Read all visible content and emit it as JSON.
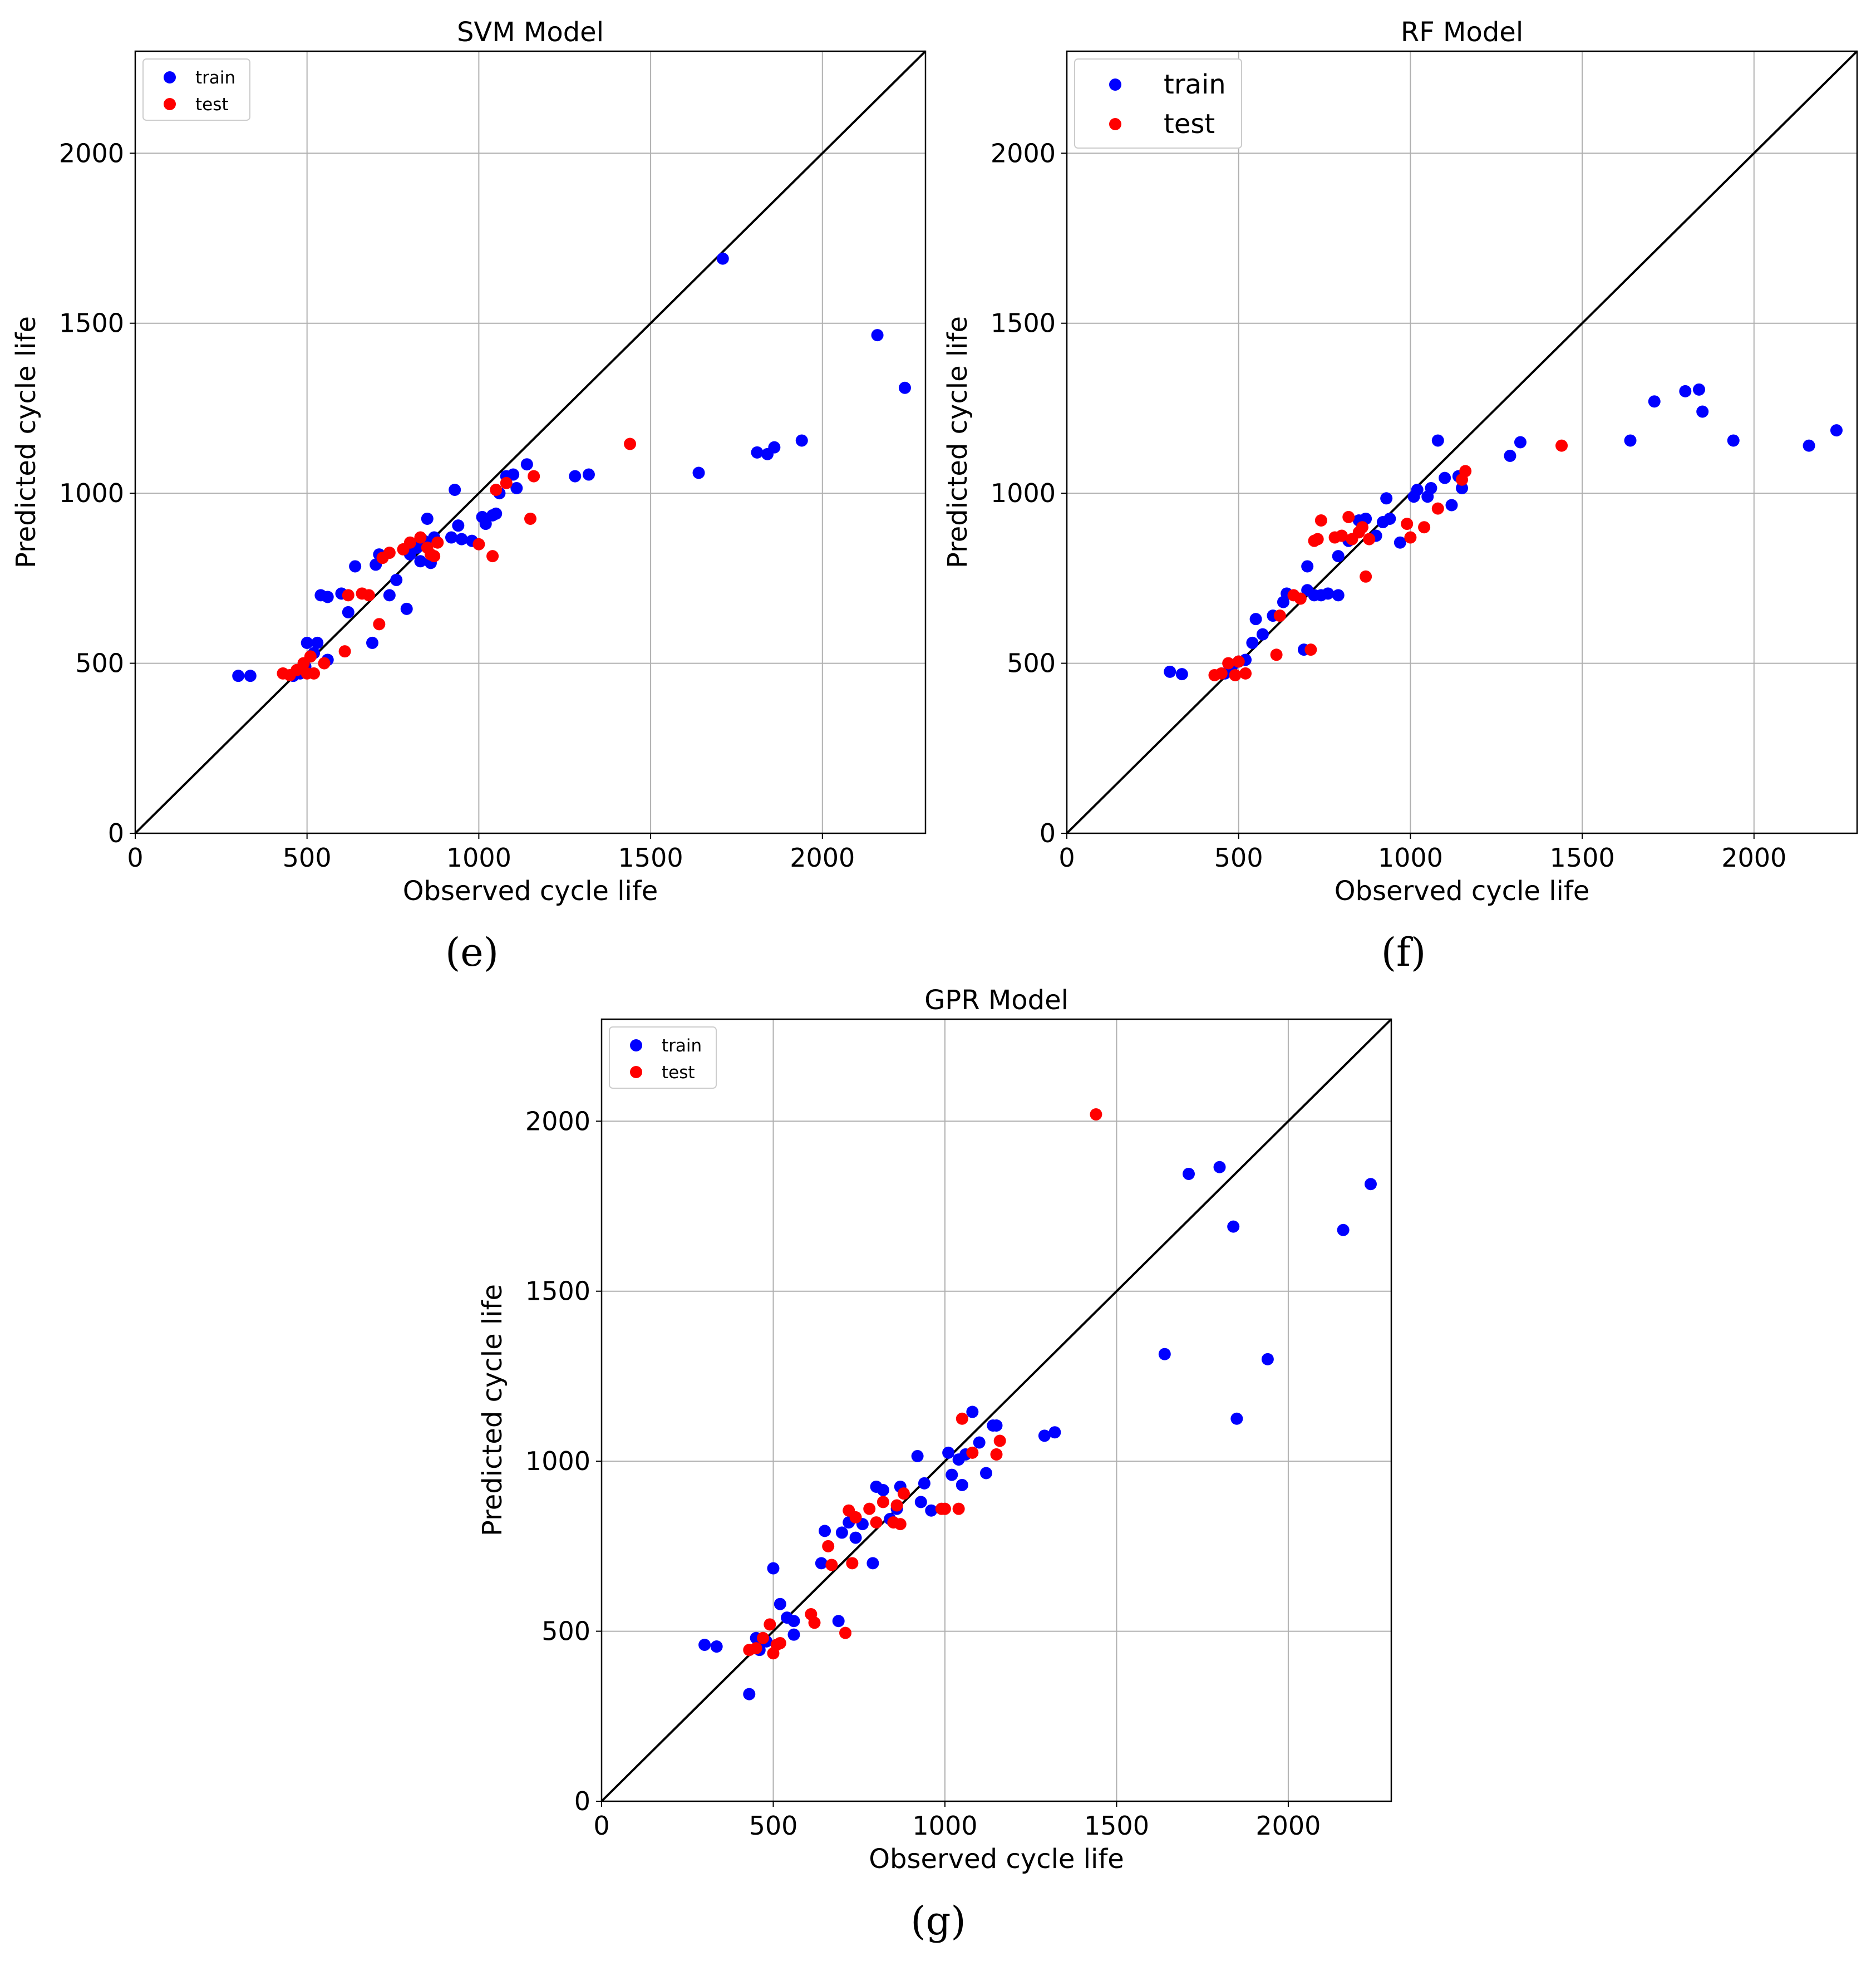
{
  "chart_data": [
    {
      "type": "scatter",
      "title": "SVM Model",
      "caption": "(e)",
      "xlabel": "Observed cycle life",
      "ylabel": "Predicted cycle life",
      "xlim": [
        0,
        2300
      ],
      "ylim": [
        0,
        2300
      ],
      "xticks": [
        0,
        500,
        1000,
        1500,
        2000
      ],
      "yticks": [
        0,
        500,
        1000,
        1500,
        2000
      ],
      "grid": true,
      "legend": "top-left",
      "identity_line": true,
      "colors": {
        "train": "#0000ff",
        "test": "#ff0000"
      },
      "series": [
        {
          "name": "train",
          "points": [
            [
              300,
              463
            ],
            [
              335,
              463
            ],
            [
              460,
              463
            ],
            [
              480,
              470
            ],
            [
              495,
              490
            ],
            [
              500,
              560
            ],
            [
              520,
              530
            ],
            [
              530,
              560
            ],
            [
              540,
              700
            ],
            [
              560,
              510
            ],
            [
              560,
              695
            ],
            [
              620,
              650
            ],
            [
              640,
              785
            ],
            [
              600,
              705
            ],
            [
              690,
              560
            ],
            [
              700,
              790
            ],
            [
              710,
              820
            ],
            [
              740,
              700
            ],
            [
              760,
              745
            ],
            [
              790,
              660
            ],
            [
              800,
              820
            ],
            [
              820,
              840
            ],
            [
              840,
              860
            ],
            [
              830,
              800
            ],
            [
              850,
              925
            ],
            [
              860,
              795
            ],
            [
              870,
              870
            ],
            [
              920,
              870
            ],
            [
              930,
              1010
            ],
            [
              940,
              905
            ],
            [
              950,
              865
            ],
            [
              980,
              860
            ],
            [
              1010,
              930
            ],
            [
              1020,
              910
            ],
            [
              1040,
              935
            ],
            [
              1050,
              940
            ],
            [
              1060,
              1000
            ],
            [
              1080,
              1050
            ],
            [
              1100,
              1055
            ],
            [
              1110,
              1015
            ],
            [
              1140,
              1085
            ],
            [
              1280,
              1050
            ],
            [
              1320,
              1055
            ],
            [
              1640,
              1060
            ],
            [
              1710,
              1690
            ],
            [
              1810,
              1120
            ],
            [
              1840,
              1115
            ],
            [
              1860,
              1135
            ],
            [
              1940,
              1155
            ],
            [
              2160,
              1465
            ],
            [
              2240,
              1310
            ]
          ]
        },
        {
          "name": "test",
          "points": [
            [
              430,
              470
            ],
            [
              450,
              465
            ],
            [
              470,
              480
            ],
            [
              490,
              500
            ],
            [
              500,
              470
            ],
            [
              510,
              520
            ],
            [
              520,
              470
            ],
            [
              550,
              500
            ],
            [
              610,
              535
            ],
            [
              620,
              700
            ],
            [
              660,
              705
            ],
            [
              680,
              700
            ],
            [
              710,
              615
            ],
            [
              720,
              810
            ],
            [
              740,
              825
            ],
            [
              780,
              835
            ],
            [
              800,
              855
            ],
            [
              830,
              870
            ],
            [
              850,
              840
            ],
            [
              860,
              820
            ],
            [
              870,
              815
            ],
            [
              880,
              855
            ],
            [
              1000,
              850
            ],
            [
              1040,
              815
            ],
            [
              1050,
              1010
            ],
            [
              1080,
              1030
            ],
            [
              1150,
              925
            ],
            [
              1160,
              1050
            ],
            [
              1440,
              1145
            ]
          ]
        }
      ]
    },
    {
      "type": "scatter",
      "title": "RF Model",
      "caption": "(f)",
      "xlabel": "Observed cycle life",
      "ylabel": "Predicted cycle life",
      "xlim": [
        0,
        2300
      ],
      "ylim": [
        0,
        2300
      ],
      "xticks": [
        0,
        500,
        1000,
        1500,
        2000
      ],
      "yticks": [
        0,
        500,
        1000,
        1500,
        2000
      ],
      "grid": true,
      "legend": "top-left",
      "identity_line": true,
      "colors": {
        "train": "#0000ff",
        "test": "#ff0000"
      },
      "series": [
        {
          "name": "train",
          "points": [
            [
              300,
              475
            ],
            [
              335,
              468
            ],
            [
              460,
              470
            ],
            [
              480,
              490
            ],
            [
              500,
              505
            ],
            [
              520,
              510
            ],
            [
              540,
              560
            ],
            [
              550,
              630
            ],
            [
              570,
              585
            ],
            [
              600,
              640
            ],
            [
              630,
              680
            ],
            [
              640,
              705
            ],
            [
              690,
              540
            ],
            [
              700,
              715
            ],
            [
              700,
              785
            ],
            [
              720,
              700
            ],
            [
              740,
              700
            ],
            [
              760,
              705
            ],
            [
              790,
              700
            ],
            [
              790,
              815
            ],
            [
              820,
              860
            ],
            [
              850,
              920
            ],
            [
              870,
              925
            ],
            [
              900,
              875
            ],
            [
              920,
              915
            ],
            [
              930,
              985
            ],
            [
              940,
              925
            ],
            [
              970,
              855
            ],
            [
              1010,
              990
            ],
            [
              1020,
              1010
            ],
            [
              1050,
              990
            ],
            [
              1060,
              1015
            ],
            [
              1080,
              1155
            ],
            [
              1100,
              1045
            ],
            [
              1120,
              965
            ],
            [
              1140,
              1050
            ],
            [
              1150,
              1015
            ],
            [
              1290,
              1110
            ],
            [
              1320,
              1150
            ],
            [
              1640,
              1155
            ],
            [
              1710,
              1270
            ],
            [
              1800,
              1300
            ],
            [
              1840,
              1305
            ],
            [
              1850,
              1240
            ],
            [
              1940,
              1155
            ],
            [
              2160,
              1140
            ],
            [
              2240,
              1185
            ]
          ]
        },
        {
          "name": "test",
          "points": [
            [
              430,
              465
            ],
            [
              450,
              470
            ],
            [
              470,
              500
            ],
            [
              490,
              465
            ],
            [
              500,
              505
            ],
            [
              520,
              470
            ],
            [
              610,
              525
            ],
            [
              620,
              640
            ],
            [
              660,
              700
            ],
            [
              680,
              690
            ],
            [
              710,
              540
            ],
            [
              720,
              860
            ],
            [
              730,
              865
            ],
            [
              740,
              920
            ],
            [
              780,
              870
            ],
            [
              800,
              875
            ],
            [
              820,
              930
            ],
            [
              830,
              865
            ],
            [
              850,
              885
            ],
            [
              860,
              900
            ],
            [
              870,
              755
            ],
            [
              880,
              865
            ],
            [
              990,
              910
            ],
            [
              1000,
              870
            ],
            [
              1040,
              900
            ],
            [
              1080,
              955
            ],
            [
              1150,
              1040
            ],
            [
              1160,
              1065
            ],
            [
              1440,
              1140
            ]
          ]
        }
      ]
    },
    {
      "type": "scatter",
      "title": "GPR Model",
      "caption": "(g)",
      "xlabel": "Observed cycle life",
      "ylabel": "Predicted cycle life",
      "xlim": [
        0,
        2300
      ],
      "ylim": [
        0,
        2300
      ],
      "xticks": [
        0,
        500,
        1000,
        1500,
        2000
      ],
      "yticks": [
        0,
        500,
        1000,
        1500,
        2000
      ],
      "grid": true,
      "legend": "top-left",
      "identity_line": true,
      "colors": {
        "train": "#0000ff",
        "test": "#ff0000"
      },
      "series": [
        {
          "name": "train",
          "points": [
            [
              300,
              460
            ],
            [
              335,
              455
            ],
            [
              430,
              315
            ],
            [
              450,
              480
            ],
            [
              460,
              445
            ],
            [
              480,
              470
            ],
            [
              500,
              685
            ],
            [
              520,
              580
            ],
            [
              540,
              540
            ],
            [
              560,
              490
            ],
            [
              560,
              530
            ],
            [
              640,
              700
            ],
            [
              650,
              795
            ],
            [
              690,
              530
            ],
            [
              700,
              790
            ],
            [
              720,
              820
            ],
            [
              740,
              775
            ],
            [
              760,
              815
            ],
            [
              790,
              700
            ],
            [
              800,
              925
            ],
            [
              820,
              915
            ],
            [
              840,
              830
            ],
            [
              860,
              860
            ],
            [
              870,
              925
            ],
            [
              920,
              1015
            ],
            [
              930,
              880
            ],
            [
              940,
              935
            ],
            [
              960,
              855
            ],
            [
              1010,
              1025
            ],
            [
              1020,
              960
            ],
            [
              1040,
              1005
            ],
            [
              1050,
              930
            ],
            [
              1060,
              1020
            ],
            [
              1080,
              1145
            ],
            [
              1100,
              1055
            ],
            [
              1120,
              965
            ],
            [
              1140,
              1105
            ],
            [
              1150,
              1105
            ],
            [
              1290,
              1075
            ],
            [
              1320,
              1085
            ],
            [
              1640,
              1315
            ],
            [
              1710,
              1845
            ],
            [
              1800,
              1865
            ],
            [
              1840,
              1690
            ],
            [
              1850,
              1125
            ],
            [
              1940,
              1300
            ],
            [
              2160,
              1680
            ],
            [
              2240,
              1815
            ]
          ]
        },
        {
          "name": "test",
          "points": [
            [
              430,
              445
            ],
            [
              450,
              450
            ],
            [
              470,
              480
            ],
            [
              490,
              520
            ],
            [
              500,
              435
            ],
            [
              510,
              460
            ],
            [
              520,
              465
            ],
            [
              610,
              550
            ],
            [
              620,
              525
            ],
            [
              660,
              750
            ],
            [
              670,
              695
            ],
            [
              710,
              495
            ],
            [
              720,
              855
            ],
            [
              730,
              700
            ],
            [
              740,
              835
            ],
            [
              780,
              860
            ],
            [
              800,
              820
            ],
            [
              820,
              880
            ],
            [
              850,
              820
            ],
            [
              860,
              870
            ],
            [
              870,
              815
            ],
            [
              880,
              905
            ],
            [
              990,
              860
            ],
            [
              1000,
              860
            ],
            [
              1040,
              860
            ],
            [
              1050,
              1125
            ],
            [
              1080,
              1025
            ],
            [
              1150,
              1020
            ],
            [
              1160,
              1060
            ],
            [
              1440,
              2020
            ]
          ]
        }
      ]
    }
  ]
}
